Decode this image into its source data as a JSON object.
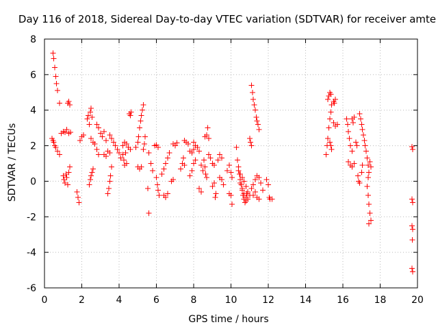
{
  "chart_data": {
    "type": "scatter",
    "title": "Day 116 of 2018, Sidereal Day-to-day VTEC variation (SDTVAR) for receiver amte",
    "xlabel": "GPS time / hours",
    "ylabel": "SDTVAR / TECUs",
    "xlim": [
      0,
      20
    ],
    "ylim": [
      -6,
      8
    ],
    "xticks": [
      0,
      2,
      4,
      6,
      8,
      10,
      12,
      14,
      16,
      18,
      20
    ],
    "yticks": [
      -6,
      -4,
      -2,
      0,
      2,
      4,
      6,
      8
    ],
    "grid": true,
    "legend": "none",
    "marker": "plus",
    "color": "#ff0000",
    "series": [
      {
        "name": "SDTVAR",
        "points": [
          [
            0.45,
            7.2
          ],
          [
            0.5,
            6.9
          ],
          [
            0.55,
            6.4
          ],
          [
            0.6,
            5.9
          ],
          [
            0.65,
            5.5
          ],
          [
            0.7,
            5.1
          ],
          [
            0.8,
            4.4
          ],
          [
            0.4,
            2.4
          ],
          [
            0.45,
            2.3
          ],
          [
            0.5,
            2.2
          ],
          [
            0.55,
            2.0
          ],
          [
            0.6,
            1.9
          ],
          [
            0.7,
            1.7
          ],
          [
            0.8,
            1.5
          ],
          [
            0.9,
            2.7
          ],
          [
            1.0,
            2.8
          ],
          [
            1.1,
            2.75
          ],
          [
            1.2,
            2.9
          ],
          [
            1.3,
            2.7
          ],
          [
            1.4,
            2.75
          ],
          [
            1.0,
            0.3
          ],
          [
            1.05,
            0.1
          ],
          [
            1.1,
            -0.1
          ],
          [
            1.15,
            0.4
          ],
          [
            1.2,
            0.2
          ],
          [
            1.25,
            -0.2
          ],
          [
            1.3,
            0.5
          ],
          [
            1.35,
            0.8
          ],
          [
            1.25,
            4.4
          ],
          [
            1.3,
            4.5
          ],
          [
            1.35,
            4.3
          ],
          [
            1.75,
            -0.6
          ],
          [
            1.8,
            -0.9
          ],
          [
            1.85,
            -1.2
          ],
          [
            1.9,
            2.3
          ],
          [
            2.0,
            2.5
          ],
          [
            2.1,
            2.6
          ],
          [
            2.3,
            3.5
          ],
          [
            2.35,
            3.7
          ],
          [
            2.4,
            3.2
          ],
          [
            2.45,
            3.9
          ],
          [
            2.5,
            4.1
          ],
          [
            2.55,
            3.6
          ],
          [
            2.4,
            -0.2
          ],
          [
            2.45,
            0.1
          ],
          [
            2.5,
            0.3
          ],
          [
            2.55,
            0.5
          ],
          [
            2.6,
            0.7
          ],
          [
            2.5,
            2.4
          ],
          [
            2.6,
            2.2
          ],
          [
            2.7,
            2.1
          ],
          [
            2.8,
            1.8
          ],
          [
            2.9,
            1.5
          ],
          [
            2.8,
            3.2
          ],
          [
            2.9,
            3.0
          ],
          [
            3.0,
            2.7
          ],
          [
            3.1,
            2.5
          ],
          [
            3.2,
            2.8
          ],
          [
            3.3,
            2.3
          ],
          [
            3.2,
            1.5
          ],
          [
            3.3,
            1.4
          ],
          [
            3.4,
            1.7
          ],
          [
            3.5,
            1.6
          ],
          [
            3.4,
            -0.7
          ],
          [
            3.45,
            -0.4
          ],
          [
            3.5,
            0.0
          ],
          [
            3.55,
            0.3
          ],
          [
            3.6,
            0.8
          ],
          [
            3.5,
            2.6
          ],
          [
            3.6,
            2.4
          ],
          [
            3.7,
            2.2
          ],
          [
            3.8,
            2.0
          ],
          [
            3.9,
            1.8
          ],
          [
            4.0,
            1.6
          ],
          [
            4.1,
            1.3
          ],
          [
            4.2,
            1.5
          ],
          [
            4.25,
            1.2
          ],
          [
            4.3,
            0.9
          ],
          [
            4.35,
            1.6
          ],
          [
            4.4,
            1.0
          ],
          [
            4.2,
            2.0
          ],
          [
            4.3,
            2.2
          ],
          [
            4.4,
            2.1
          ],
          [
            4.5,
            1.9
          ],
          [
            4.6,
            1.8
          ],
          [
            4.55,
            3.8
          ],
          [
            4.6,
            3.7
          ],
          [
            4.65,
            3.9
          ],
          [
            4.9,
            1.9
          ],
          [
            5.0,
            2.2
          ],
          [
            5.05,
            2.5
          ],
          [
            5.1,
            3.0
          ],
          [
            5.15,
            3.4
          ],
          [
            5.2,
            3.7
          ],
          [
            5.25,
            4.0
          ],
          [
            5.3,
            4.3
          ],
          [
            5.0,
            0.8
          ],
          [
            5.1,
            0.7
          ],
          [
            5.2,
            0.8
          ],
          [
            5.3,
            1.8
          ],
          [
            5.35,
            2.1
          ],
          [
            5.4,
            2.5
          ],
          [
            5.6,
            1.6
          ],
          [
            5.7,
            1.0
          ],
          [
            5.8,
            0.6
          ],
          [
            5.55,
            -0.4
          ],
          [
            5.6,
            -1.8
          ],
          [
            5.9,
            2.0
          ],
          [
            6.0,
            2.05
          ],
          [
            6.1,
            1.9
          ],
          [
            6.0,
            0.2
          ],
          [
            6.05,
            -0.2
          ],
          [
            6.1,
            -0.5
          ],
          [
            6.15,
            -0.8
          ],
          [
            6.3,
            0.4
          ],
          [
            6.4,
            0.7
          ],
          [
            6.5,
            1.0
          ],
          [
            6.6,
            1.3
          ],
          [
            6.7,
            1.6
          ],
          [
            6.4,
            -0.8
          ],
          [
            6.5,
            -0.9
          ],
          [
            6.6,
            -0.7
          ],
          [
            6.8,
            0.0
          ],
          [
            6.9,
            0.1
          ],
          [
            6.9,
            2.1
          ],
          [
            7.0,
            2.0
          ],
          [
            7.1,
            2.15
          ],
          [
            7.3,
            0.7
          ],
          [
            7.4,
            1.0
          ],
          [
            7.45,
            1.3
          ],
          [
            7.5,
            0.9
          ],
          [
            7.5,
            2.3
          ],
          [
            7.6,
            2.2
          ],
          [
            7.7,
            2.1
          ],
          [
            7.8,
            1.7
          ],
          [
            7.9,
            1.6
          ],
          [
            8.0,
            1.8
          ],
          [
            7.8,
            0.3
          ],
          [
            7.9,
            0.6
          ],
          [
            8.0,
            1.0
          ],
          [
            8.1,
            1.2
          ],
          [
            8.0,
            2.2
          ],
          [
            8.1,
            2.0
          ],
          [
            8.2,
            1.9
          ],
          [
            8.3,
            1.7
          ],
          [
            8.3,
            -0.4
          ],
          [
            8.4,
            -0.6
          ],
          [
            8.4,
            0.9
          ],
          [
            8.5,
            0.6
          ],
          [
            8.55,
            1.2
          ],
          [
            8.6,
            0.8
          ],
          [
            8.65,
            0.4
          ],
          [
            8.7,
            0.2
          ],
          [
            8.6,
            2.5
          ],
          [
            8.7,
            2.6
          ],
          [
            8.75,
            3.0
          ],
          [
            8.8,
            2.4
          ],
          [
            8.8,
            1.5
          ],
          [
            8.9,
            1.3
          ],
          [
            9.0,
            1.0
          ],
          [
            9.1,
            0.9
          ],
          [
            9.0,
            -0.3
          ],
          [
            9.1,
            -0.1
          ],
          [
            9.15,
            -0.9
          ],
          [
            9.2,
            -0.7
          ],
          [
            9.3,
            1.2
          ],
          [
            9.4,
            1.5
          ],
          [
            9.5,
            1.3
          ],
          [
            9.4,
            0.2
          ],
          [
            9.5,
            0.1
          ],
          [
            9.6,
            -0.2
          ],
          [
            9.8,
            0.6
          ],
          [
            9.9,
            0.9
          ],
          [
            10.0,
            0.5
          ],
          [
            10.05,
            0.2
          ],
          [
            9.9,
            -0.7
          ],
          [
            10.0,
            -0.8
          ],
          [
            10.05,
            -1.3
          ],
          [
            10.3,
            1.9
          ],
          [
            10.35,
            1.2
          ],
          [
            10.4,
            0.8
          ],
          [
            10.45,
            0.4
          ],
          [
            10.5,
            0.1
          ],
          [
            10.55,
            -0.2
          ],
          [
            10.6,
            -0.5
          ],
          [
            10.65,
            -0.8
          ],
          [
            10.7,
            -1.0
          ],
          [
            10.75,
            -1.2
          ],
          [
            10.8,
            -1.1
          ],
          [
            10.85,
            -0.7
          ],
          [
            10.4,
            0.6
          ],
          [
            10.5,
            0.4
          ],
          [
            10.6,
            0.2
          ],
          [
            10.7,
            0.0
          ],
          [
            10.8,
            -0.3
          ],
          [
            10.9,
            -0.6
          ],
          [
            10.5,
            -0.1
          ],
          [
            10.6,
            -0.4
          ],
          [
            10.7,
            -0.7
          ],
          [
            10.8,
            -0.9
          ],
          [
            10.9,
            -1.0
          ],
          [
            11.0,
            -0.8
          ],
          [
            11.0,
            2.4
          ],
          [
            11.05,
            2.2
          ],
          [
            11.1,
            2.0
          ],
          [
            11.1,
            5.4
          ],
          [
            11.15,
            5.0
          ],
          [
            11.2,
            4.6
          ],
          [
            11.25,
            4.3
          ],
          [
            11.3,
            4.0
          ],
          [
            11.35,
            3.6
          ],
          [
            11.4,
            3.4
          ],
          [
            11.45,
            3.2
          ],
          [
            11.5,
            2.9
          ],
          [
            11.1,
            -0.4
          ],
          [
            11.2,
            -0.2
          ],
          [
            11.3,
            0.1
          ],
          [
            11.4,
            0.3
          ],
          [
            11.5,
            0.2
          ],
          [
            11.6,
            -0.1
          ],
          [
            11.7,
            -0.5
          ],
          [
            11.2,
            -0.8
          ],
          [
            11.3,
            -0.6
          ],
          [
            11.4,
            -0.9
          ],
          [
            11.5,
            -1.0
          ],
          [
            11.9,
            0.1
          ],
          [
            12.0,
            -0.2
          ],
          [
            12.05,
            -0.9
          ],
          [
            12.1,
            -1.0
          ],
          [
            12.2,
            -1.0
          ],
          [
            15.1,
            1.5
          ],
          [
            15.15,
            2.0
          ],
          [
            15.2,
            2.4
          ],
          [
            15.25,
            3.0
          ],
          [
            15.3,
            3.5
          ],
          [
            15.35,
            3.9
          ],
          [
            15.4,
            4.3
          ],
          [
            15.2,
            4.6
          ],
          [
            15.25,
            4.8
          ],
          [
            15.3,
            5.0
          ],
          [
            15.35,
            4.9
          ],
          [
            15.3,
            2.2
          ],
          [
            15.35,
            2.0
          ],
          [
            15.4,
            1.8
          ],
          [
            15.5,
            4.5
          ],
          [
            15.55,
            4.4
          ],
          [
            15.6,
            4.6
          ],
          [
            15.5,
            3.3
          ],
          [
            15.6,
            3.1
          ],
          [
            15.7,
            3.2
          ],
          [
            16.2,
            3.5
          ],
          [
            16.25,
            3.2
          ],
          [
            16.3,
            2.8
          ],
          [
            16.35,
            2.4
          ],
          [
            16.4,
            2.0
          ],
          [
            16.5,
            1.7
          ],
          [
            16.3,
            1.1
          ],
          [
            16.4,
            0.9
          ],
          [
            16.5,
            0.8
          ],
          [
            16.6,
            1.0
          ],
          [
            16.5,
            3.5
          ],
          [
            16.55,
            3.3
          ],
          [
            16.6,
            3.6
          ],
          [
            16.7,
            2.2
          ],
          [
            16.75,
            2.0
          ],
          [
            16.8,
            0.3
          ],
          [
            16.85,
            0.0
          ],
          [
            16.9,
            -0.1
          ],
          [
            17.0,
            0.5
          ],
          [
            17.05,
            0.9
          ],
          [
            16.9,
            3.8
          ],
          [
            16.95,
            3.5
          ],
          [
            17.0,
            3.2
          ],
          [
            17.05,
            2.9
          ],
          [
            17.1,
            2.6
          ],
          [
            17.15,
            2.3
          ],
          [
            17.2,
            2.0
          ],
          [
            17.25,
            1.7
          ],
          [
            17.3,
            1.3
          ],
          [
            17.35,
            0.9
          ],
          [
            17.4,
            0.5
          ],
          [
            17.35,
            0.2
          ],
          [
            17.3,
            -0.3
          ],
          [
            17.35,
            -0.8
          ],
          [
            17.4,
            -1.3
          ],
          [
            17.45,
            -1.8
          ],
          [
            17.5,
            -2.2
          ],
          [
            17.4,
            -2.4
          ],
          [
            17.45,
            1.1
          ],
          [
            17.5,
            0.8
          ],
          [
            19.7,
            1.95
          ],
          [
            19.75,
            1.8
          ],
          [
            19.7,
            -1.0
          ],
          [
            19.75,
            -1.2
          ],
          [
            19.7,
            -2.5
          ],
          [
            19.75,
            -2.7
          ],
          [
            19.72,
            -3.3
          ],
          [
            19.7,
            -4.9
          ],
          [
            19.75,
            -5.1
          ]
        ]
      }
    ]
  }
}
